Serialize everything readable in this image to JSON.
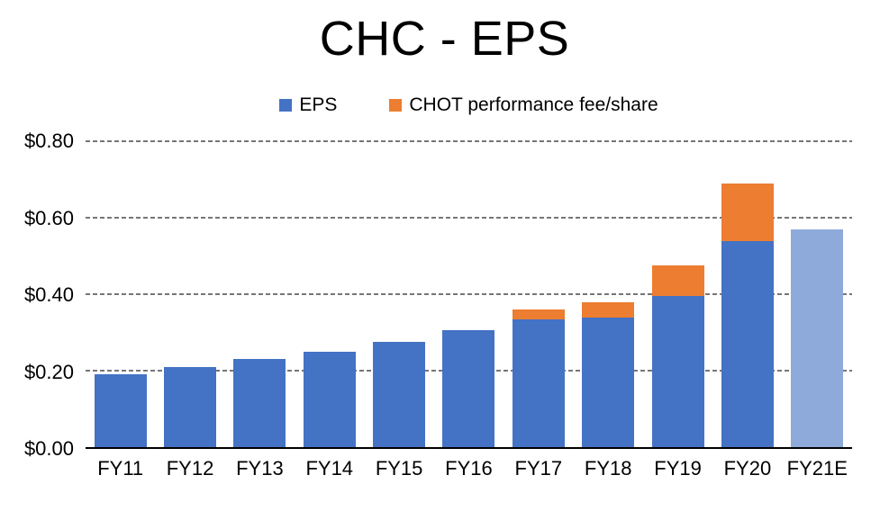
{
  "title": "CHC - EPS",
  "legend": {
    "items": [
      {
        "label": "EPS",
        "color": "#4472C4"
      },
      {
        "label": "CHOT performance fee/share",
        "color": "#ED7D31"
      }
    ]
  },
  "chart_data": {
    "type": "bar",
    "stacked": true,
    "title": "CHC - EPS",
    "categories": [
      "FY11",
      "FY12",
      "FY13",
      "FY14",
      "FY15",
      "FY16",
      "FY17",
      "FY18",
      "FY19",
      "FY20",
      "FY21E"
    ],
    "series": [
      {
        "name": "EPS",
        "color": "#4472C4",
        "values": [
          0.19,
          0.21,
          0.23,
          0.25,
          0.275,
          0.305,
          0.335,
          0.34,
          0.395,
          0.54,
          0
        ]
      },
      {
        "name": "CHOT performance fee/share",
        "color": "#ED7D31",
        "values": [
          0,
          0,
          0,
          0,
          0,
          0,
          0.025,
          0.04,
          0.08,
          0.15,
          0
        ]
      },
      {
        "name": "EPS estimate (FY21E, lighter bar not in legend)",
        "color": "#8EAADB",
        "values": [
          0,
          0,
          0,
          0,
          0,
          0,
          0,
          0,
          0,
          0,
          0.57
        ]
      }
    ],
    "xlabel": "",
    "ylabel": "",
    "ylim": [
      0,
      0.8
    ],
    "yticks": [
      {
        "label": "$0.00",
        "value": 0.0
      },
      {
        "label": "$0.20",
        "value": 0.2
      },
      {
        "label": "$0.40",
        "value": 0.4
      },
      {
        "label": "$0.60",
        "value": 0.6
      },
      {
        "label": "$0.80",
        "value": 0.8
      }
    ],
    "grid": "horizontal-dashed",
    "grid_color": "#767676",
    "axis_line_color": "#000000",
    "legend_position": "top-center"
  }
}
